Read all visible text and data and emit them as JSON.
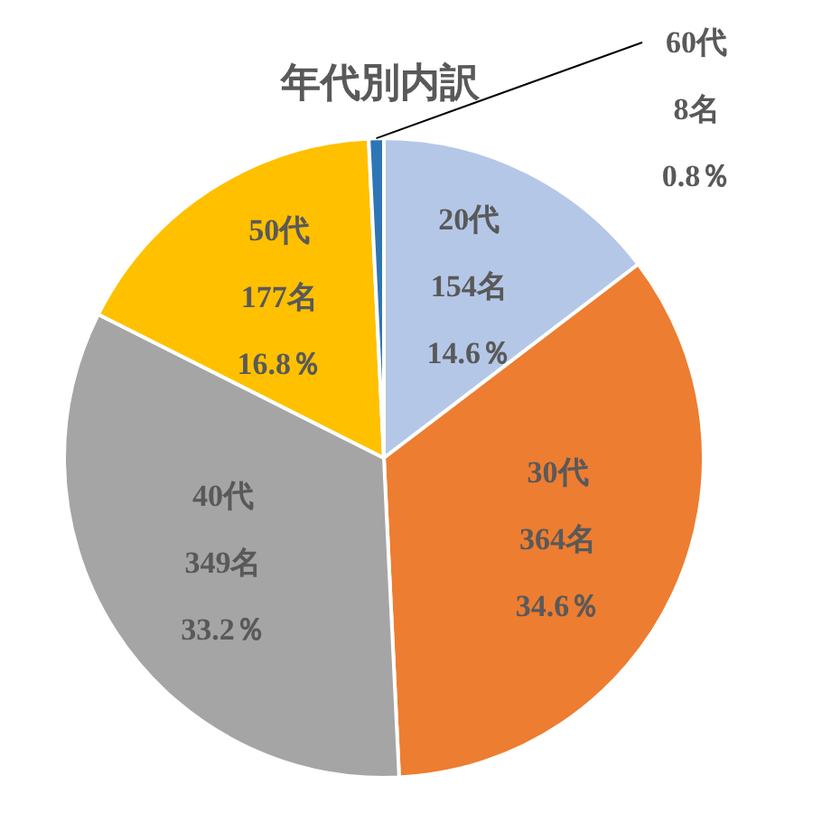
{
  "chart_data": {
    "type": "pie",
    "title": "年代別内訳",
    "categories": [
      "20代",
      "30代",
      "40代",
      "50代",
      "60代"
    ],
    "values": [
      154,
      364,
      349,
      177,
      8
    ],
    "value_labels": [
      "154名\n14.6％",
      "364名\n34.6％",
      "349名\n33.2％",
      "177名\n16.8％",
      "8名\n0.8％"
    ],
    "colors": [
      "#b4c7e7",
      "#ed7d31",
      "#a5a5a5",
      "#ffc000",
      "#2e75b6"
    ]
  }
}
